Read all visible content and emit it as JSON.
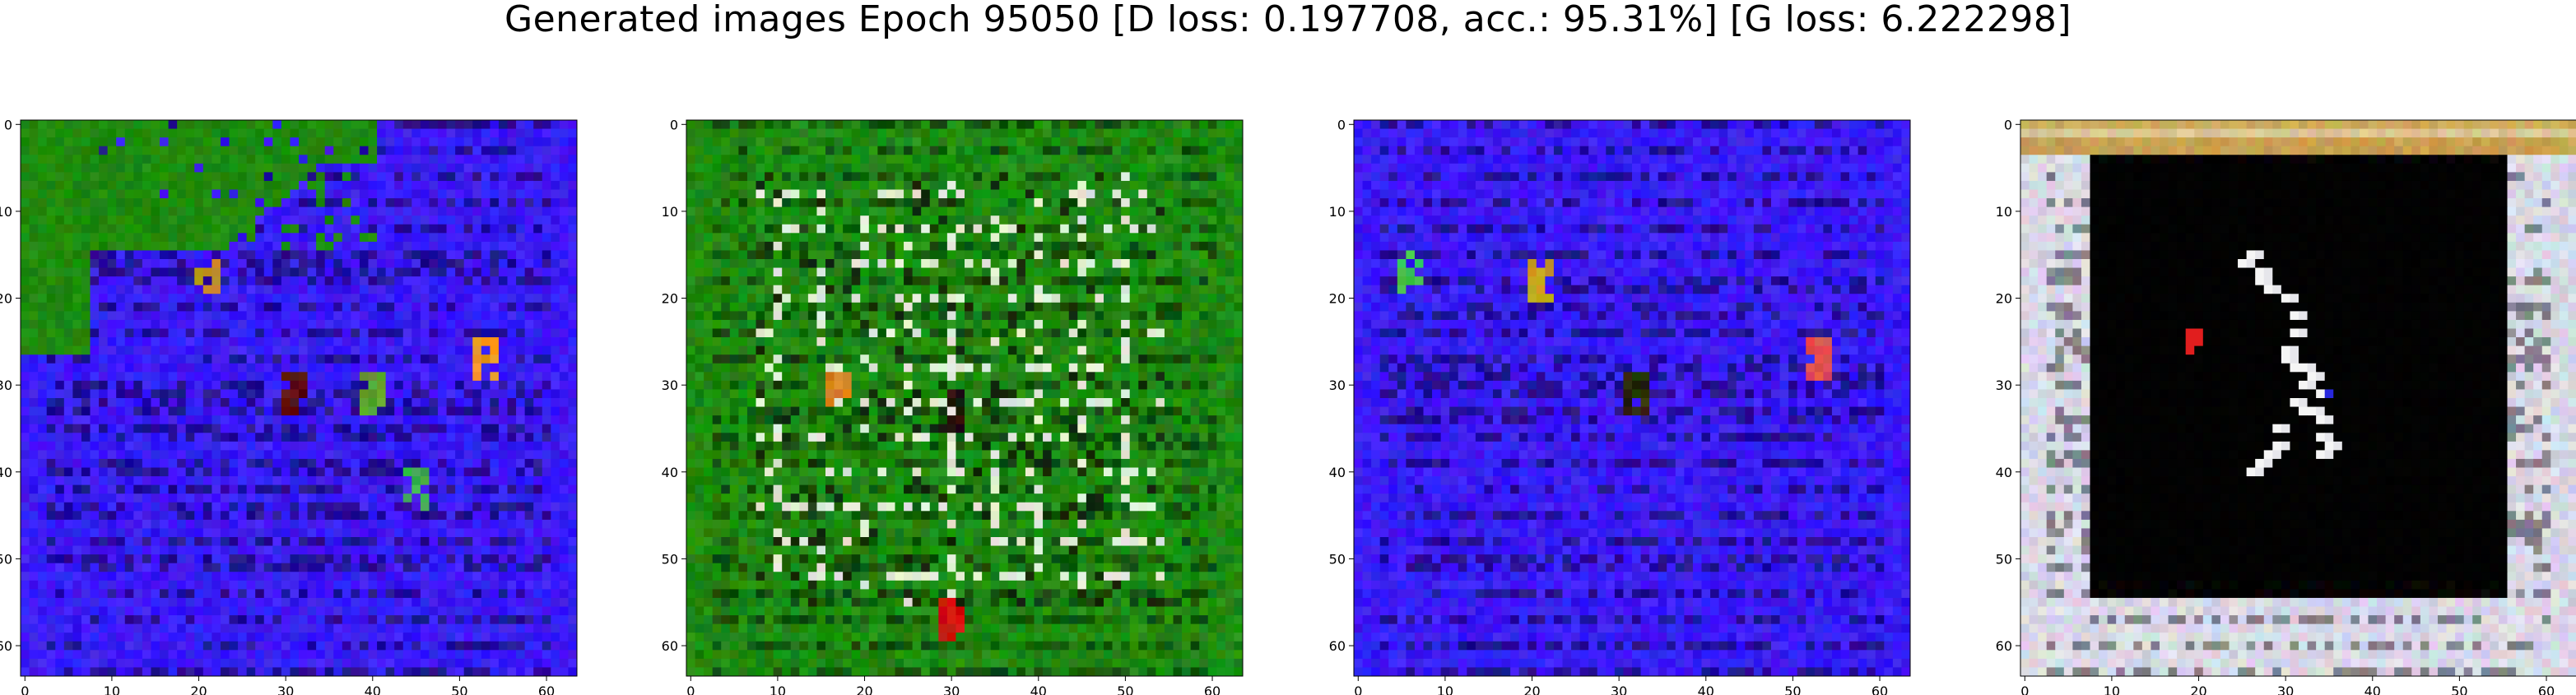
{
  "title": "Generated images Epoch 95050 [D loss: 0.197708, acc.: 95.31%] [G loss: 6.222298]",
  "chart_data": [
    {
      "type": "heatmap",
      "description_in_image": "RGB generated image",
      "xlim": [
        0,
        63
      ],
      "ylim": [
        63,
        0
      ],
      "xticks": [
        0,
        10,
        20,
        30,
        40,
        50,
        60
      ],
      "yticks": [
        0,
        10,
        20,
        30,
        40,
        50,
        60
      ],
      "dominant_color": "#3a1cf5",
      "features": [
        {
          "kind": "green-block",
          "color": "#1f8a0e",
          "x": [
            0,
            40
          ],
          "y": [
            0,
            14
          ]
        },
        {
          "kind": "green-drip",
          "color": "#1f8a0e",
          "x": [
            0,
            7
          ],
          "y": [
            0,
            26
          ]
        },
        {
          "kind": "spot",
          "color": "#f0a020",
          "x": 53,
          "y": 27
        },
        {
          "kind": "spot",
          "color": "#c89020",
          "x": 21,
          "y": 18
        },
        {
          "kind": "spot",
          "color": "#5a1010",
          "x": 31,
          "y": 31
        },
        {
          "kind": "spot",
          "color": "#5aa030",
          "x": 40,
          "y": 31
        },
        {
          "kind": "spot",
          "color": "#3ab050",
          "x": 45,
          "y": 42
        }
      ]
    },
    {
      "type": "heatmap",
      "xlim": [
        0,
        63
      ],
      "ylim": [
        63,
        0
      ],
      "xticks": [
        0,
        10,
        20,
        30,
        40,
        50,
        60
      ],
      "yticks": [
        0,
        10,
        20,
        30,
        40,
        50,
        60
      ],
      "dominant_color": "#1f8a12",
      "features": [
        {
          "kind": "dark-blob",
          "color": "#2a0808",
          "x": 30,
          "y": 33
        },
        {
          "kind": "red-spot",
          "color": "#d01010",
          "x": 30,
          "y": 57
        },
        {
          "kind": "orange-spot",
          "color": "#e08020",
          "x": 17,
          "y": 30
        }
      ]
    },
    {
      "type": "heatmap",
      "xlim": [
        0,
        63
      ],
      "ylim": [
        63,
        0
      ],
      "xticks": [
        0,
        10,
        20,
        30,
        40,
        50,
        60
      ],
      "yticks": [
        0,
        10,
        20,
        30,
        40,
        50,
        60
      ],
      "dominant_color": "#3a1cf5",
      "features": [
        {
          "kind": "spot",
          "color": "#c8a020",
          "x": 21,
          "y": 18
        },
        {
          "kind": "spot",
          "color": "#2a2a10",
          "x": 32,
          "y": 31
        },
        {
          "kind": "spot",
          "color": "#e05050",
          "x": 53,
          "y": 27
        },
        {
          "kind": "spot",
          "color": "#40c050",
          "x": 6,
          "y": 17
        }
      ]
    },
    {
      "type": "heatmap",
      "xlim": [
        0,
        63
      ],
      "ylim": [
        63,
        0
      ],
      "xticks": [
        0,
        10,
        20,
        30,
        40,
        50,
        60
      ],
      "yticks": [
        0,
        10,
        20,
        30,
        40,
        50,
        60
      ],
      "dominant_color": "#d8d8e6",
      "features": [
        {
          "kind": "black-interior",
          "color": "#000000",
          "x": [
            8,
            55
          ],
          "y": [
            4,
            54
          ]
        },
        {
          "kind": "top-bar",
          "color": "#c8a050",
          "x": [
            0,
            63
          ],
          "y": [
            0,
            3
          ]
        },
        {
          "kind": "red-blob",
          "color": "#e02020",
          "x": 19,
          "y": 25
        },
        {
          "kind": "white-figure",
          "color": "#ffffff",
          "x": 32,
          "y": 33
        },
        {
          "kind": "blue-spot",
          "color": "#3030e0",
          "x": 35,
          "y": 31
        }
      ]
    }
  ]
}
